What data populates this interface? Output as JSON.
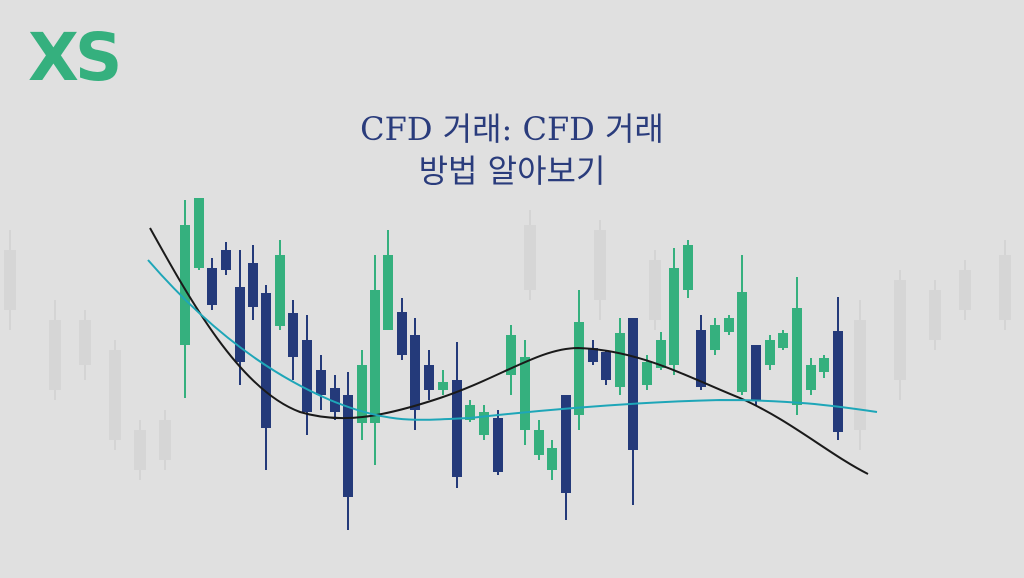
{
  "logo": "XS",
  "title": {
    "lines": [
      "CFD 거래: CFD 거래",
      "방법 알아보기"
    ]
  }
}
